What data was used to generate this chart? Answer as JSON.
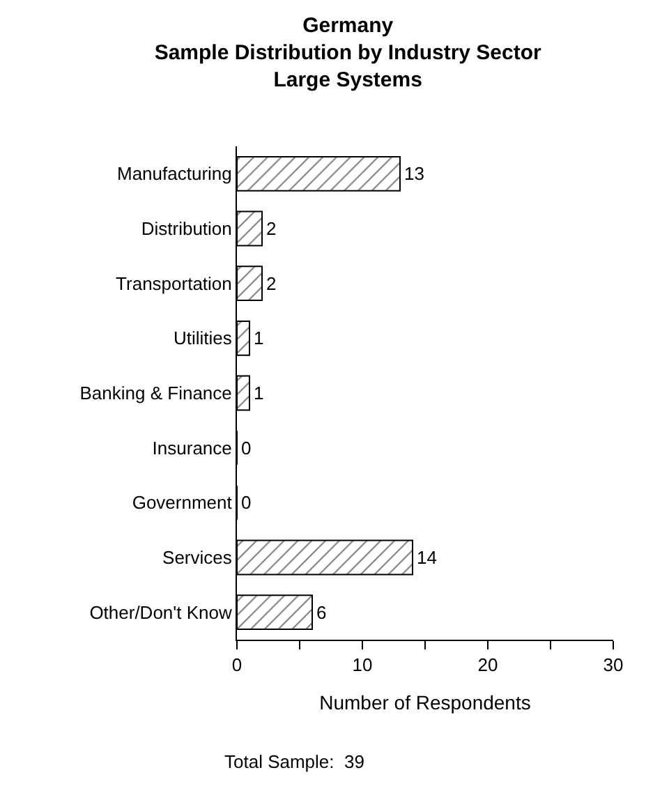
{
  "chart_data": {
    "type": "bar",
    "orientation": "horizontal",
    "title": "Germany\nSample Distribution by Industry Sector\nLarge Systems",
    "categories": [
      "Manufacturing",
      "Distribution",
      "Transportation",
      "Utilities",
      "Banking & Finance",
      "Insurance",
      "Government",
      "Services",
      "Other/Don't Know"
    ],
    "values": [
      13,
      2,
      2,
      1,
      1,
      0,
      0,
      14,
      6
    ],
    "color": "#000000",
    "xlim": [
      0,
      30
    ],
    "xticks": [
      0,
      {
        "value": 5,
        "label": null
      },
      10,
      {
        "value": 15,
        "label": null
      },
      20,
      {
        "value": 25,
        "label": null
      },
      30
    ],
    "xlabel": "Number of Respondents",
    "data_labels": true,
    "annotations": [
      "Total Sample:  39"
    ]
  }
}
